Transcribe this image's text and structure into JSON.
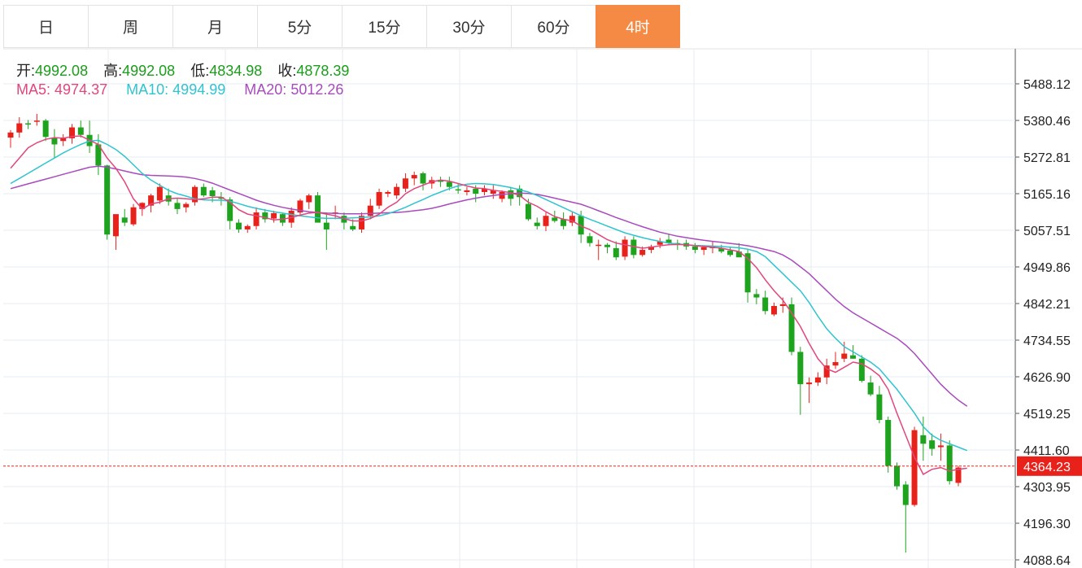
{
  "tabs": [
    {
      "label": "日",
      "active": false
    },
    {
      "label": "周",
      "active": false
    },
    {
      "label": "月",
      "active": false
    },
    {
      "label": "5分",
      "active": false
    },
    {
      "label": "15分",
      "active": false
    },
    {
      "label": "30分",
      "active": false
    },
    {
      "label": "60分",
      "active": false
    },
    {
      "label": "4时",
      "active": true
    }
  ],
  "ohlc_info": {
    "open_label": "开:",
    "open": "4992.08",
    "high_label": "高:",
    "high": "4992.08",
    "low_label": "低:",
    "low": "4834.98",
    "close_label": "收:",
    "close": "4878.39"
  },
  "ma_info": {
    "ma5_label": "MA5:",
    "ma5": "4974.37",
    "ma10_label": "MA10:",
    "ma10": "4994.99",
    "ma20_label": "MA20:",
    "ma20": "5012.26"
  },
  "colors": {
    "up": "#e8221b",
    "down": "#1ea31e",
    "ma5": "#e2467c",
    "ma10": "#2fc4d0",
    "ma20": "#a84bbd",
    "grid": "#e6ecf0",
    "tab_active": "#f58a45"
  },
  "chart_data": {
    "type": "candlestick",
    "y_ticks": [
      "5488.12",
      "5380.46",
      "5272.81",
      "5165.16",
      "5057.51",
      "4949.86",
      "4842.21",
      "4734.55",
      "4626.90",
      "4519.25",
      "4411.60",
      "4303.95",
      "4196.30",
      "4088.64"
    ],
    "ylim": [
      4088.64,
      5488.12
    ],
    "last_price": "4364.23",
    "grid": true,
    "candles": [
      [
        5330,
        5352,
        5300,
        5345
      ],
      [
        5345,
        5390,
        5330,
        5372
      ],
      [
        5372,
        5382,
        5355,
        5370
      ],
      [
        5378,
        5400,
        5365,
        5380
      ],
      [
        5380,
        5385,
        5320,
        5332
      ],
      [
        5330,
        5355,
        5270,
        5310
      ],
      [
        5320,
        5340,
        5305,
        5330
      ],
      [
        5328,
        5370,
        5312,
        5360
      ],
      [
        5360,
        5380,
        5330,
        5338
      ],
      [
        5338,
        5380,
        5285,
        5305
      ],
      [
        5310,
        5340,
        5220,
        5248
      ],
      [
        5248,
        5250,
        5030,
        5045
      ],
      [
        5040,
        5100,
        5000,
        5105
      ],
      [
        5095,
        5120,
        5070,
        5080
      ],
      [
        5075,
        5135,
        5070,
        5125
      ],
      [
        5120,
        5140,
        5100,
        5138
      ],
      [
        5130,
        5165,
        5110,
        5160
      ],
      [
        5145,
        5195,
        5135,
        5185
      ],
      [
        5160,
        5180,
        5130,
        5142
      ],
      [
        5138,
        5150,
        5105,
        5120
      ],
      [
        5125,
        5140,
        5110,
        5135
      ],
      [
        5140,
        5190,
        5130,
        5185
      ],
      [
        5185,
        5195,
        5155,
        5160
      ],
      [
        5175,
        5185,
        5140,
        5158
      ],
      [
        5155,
        5170,
        5130,
        5150
      ],
      [
        5148,
        5155,
        5060,
        5085
      ],
      [
        5080,
        5090,
        5050,
        5060
      ],
      [
        5060,
        5075,
        5050,
        5070
      ],
      [
        5070,
        5125,
        5060,
        5110
      ],
      [
        5110,
        5120,
        5080,
        5090
      ],
      [
        5092,
        5115,
        5080,
        5108
      ],
      [
        5105,
        5108,
        5070,
        5080
      ],
      [
        5080,
        5125,
        5065,
        5115
      ],
      [
        5110,
        5150,
        5100,
        5145
      ],
      [
        5140,
        5165,
        5120,
        5160
      ],
      [
        5160,
        5170,
        5090,
        5080
      ],
      [
        5080,
        5110,
        5000,
        5060
      ],
      [
        5110,
        5130,
        5090,
        5110
      ],
      [
        5100,
        5110,
        5060,
        5080
      ],
      [
        5070,
        5090,
        5055,
        5060
      ],
      [
        5060,
        5110,
        5050,
        5100
      ],
      [
        5100,
        5150,
        5090,
        5130
      ],
      [
        5130,
        5180,
        5120,
        5170
      ],
      [
        5165,
        5175,
        5155,
        5170
      ],
      [
        5160,
        5195,
        5150,
        5185
      ],
      [
        5180,
        5225,
        5170,
        5210
      ],
      [
        5210,
        5230,
        5190,
        5220
      ],
      [
        5225,
        5230,
        5175,
        5195
      ],
      [
        5195,
        5215,
        5180,
        5205
      ],
      [
        5205,
        5215,
        5185,
        5200
      ],
      [
        5200,
        5215,
        5175,
        5185
      ],
      [
        5178,
        5195,
        5165,
        5175
      ],
      [
        5170,
        5185,
        5160,
        5175
      ],
      [
        5180,
        5190,
        5140,
        5165
      ],
      [
        5170,
        5190,
        5160,
        5180
      ],
      [
        5165,
        5190,
        5150,
        5175
      ],
      [
        5150,
        5175,
        5140,
        5170
      ],
      [
        5175,
        5185,
        5130,
        5150
      ],
      [
        5180,
        5190,
        5130,
        5155
      ],
      [
        5135,
        5150,
        5085,
        5090
      ],
      [
        5080,
        5095,
        5060,
        5070
      ],
      [
        5070,
        5110,
        5055,
        5100
      ],
      [
        5095,
        5115,
        5080,
        5085
      ],
      [
        5090,
        5110,
        5060,
        5070
      ],
      [
        5080,
        5110,
        5070,
        5100
      ],
      [
        5100,
        5115,
        5020,
        5045
      ],
      [
        5040,
        5050,
        5010,
        5020
      ],
      [
        5015,
        5030,
        4970,
        5015
      ],
      [
        5015,
        5020,
        4990,
        5008
      ],
      [
        5005,
        5025,
        4970,
        4978
      ],
      [
        4980,
        5040,
        4970,
        5030
      ],
      [
        5030,
        5040,
        4975,
        4985
      ],
      [
        4985,
        5010,
        4980,
        5000
      ],
      [
        5000,
        5015,
        4990,
        5010
      ],
      [
        5015,
        5035,
        5005,
        5025
      ],
      [
        5030,
        5045,
        5015,
        5020
      ],
      [
        5020,
        5030,
        5000,
        5015
      ],
      [
        5020,
        5030,
        5000,
        5010
      ],
      [
        5010,
        5020,
        4990,
        5000
      ],
      [
        5000,
        5012,
        4985,
        5008
      ],
      [
        5005,
        5025,
        4990,
        5010
      ],
      [
        5005,
        5015,
        4990,
        4995
      ],
      [
        4998,
        5010,
        4980,
        4985
      ],
      [
        4995,
        5020,
        4980,
        4978
      ],
      [
        4990,
        5000,
        4845,
        4875
      ],
      [
        4870,
        4885,
        4840,
        4860
      ],
      [
        4860,
        4880,
        4810,
        4820
      ],
      [
        4810,
        4845,
        4805,
        4835
      ],
      [
        4835,
        4860,
        4815,
        4840
      ],
      [
        4840,
        4860,
        4690,
        4700
      ],
      [
        4700,
        4715,
        4515,
        4605
      ],
      [
        4605,
        4625,
        4550,
        4610
      ],
      [
        4610,
        4640,
        4600,
        4625
      ],
      [
        4625,
        4680,
        4605,
        4660
      ],
      [
        4660,
        4700,
        4650,
        4670
      ],
      [
        4680,
        4730,
        4670,
        4695
      ],
      [
        4690,
        4720,
        4680,
        4680
      ],
      [
        4680,
        4690,
        4610,
        4615
      ],
      [
        4610,
        4630,
        4570,
        4575
      ],
      [
        4575,
        4600,
        4490,
        4500
      ],
      [
        4500,
        4510,
        4345,
        4365
      ],
      [
        4365,
        4375,
        4295,
        4305
      ],
      [
        4310,
        4320,
        4110,
        4250
      ],
      [
        4250,
        4480,
        4245,
        4470
      ],
      [
        4455,
        4510,
        4380,
        4430
      ],
      [
        4440,
        4460,
        4395,
        4415
      ],
      [
        4420,
        4460,
        4380,
        4425
      ],
      [
        4425,
        4440,
        4310,
        4320
      ],
      [
        4315,
        4365,
        4305,
        4360
      ]
    ],
    "ma5": [
      5240,
      5270,
      5300,
      5315,
      5325,
      5330,
      5328,
      5333,
      5335,
      5322,
      5310,
      5270,
      5240,
      5200,
      5150,
      5120,
      5135,
      5140,
      5150,
      5152,
      5150,
      5148,
      5150,
      5155,
      5155,
      5140,
      5118,
      5105,
      5100,
      5095,
      5088,
      5090,
      5095,
      5102,
      5108,
      5110,
      5105,
      5100,
      5092,
      5085,
      5085,
      5092,
      5105,
      5125,
      5140,
      5165,
      5180,
      5190,
      5200,
      5205,
      5202,
      5195,
      5188,
      5182,
      5180,
      5175,
      5172,
      5168,
      5160,
      5140,
      5128,
      5112,
      5098,
      5090,
      5085,
      5070,
      5060,
      5045,
      5030,
      5020,
      5015,
      5010,
      5005,
      5008,
      5012,
      5015,
      5016,
      5015,
      5012,
      5010,
      5008,
      5005,
      5000,
      4995,
      4975,
      4948,
      4912,
      4880,
      4852,
      4815,
      4775,
      4725,
      4680,
      4650,
      4640,
      4655,
      4670,
      4665,
      4650,
      4630,
      4590,
      4520,
      4455,
      4390,
      4340,
      4355,
      4360,
      4350,
      4355,
      4358
    ],
    "ma10": [
      5195,
      5210,
      5225,
      5240,
      5255,
      5270,
      5285,
      5298,
      5310,
      5320,
      5322,
      5310,
      5295,
      5275,
      5250,
      5225,
      5205,
      5190,
      5175,
      5165,
      5158,
      5150,
      5147,
      5146,
      5146,
      5143,
      5136,
      5128,
      5122,
      5117,
      5112,
      5108,
      5104,
      5100,
      5097,
      5094,
      5093,
      5093,
      5093,
      5094,
      5095,
      5097,
      5100,
      5106,
      5115,
      5125,
      5137,
      5148,
      5160,
      5170,
      5180,
      5188,
      5193,
      5195,
      5194,
      5192,
      5188,
      5183,
      5177,
      5170,
      5160,
      5148,
      5136,
      5124,
      5112,
      5100,
      5090,
      5080,
      5070,
      5060,
      5050,
      5043,
      5036,
      5030,
      5025,
      5020,
      5017,
      5015,
      5013,
      5012,
      5011,
      5010,
      5008,
      5006,
      5002,
      4995,
      4980,
      4955,
      4930,
      4905,
      4880,
      4845,
      4805,
      4768,
      4740,
      4715,
      4700,
      4685,
      4670,
      4650,
      4620,
      4590,
      4555,
      4520,
      4480,
      4455,
      4440,
      4430,
      4420,
      4410
    ],
    "ma20": [
      5180,
      5187,
      5194,
      5201,
      5208,
      5215,
      5222,
      5229,
      5236,
      5243,
      5246,
      5243,
      5238,
      5232,
      5226,
      5221,
      5219,
      5218,
      5217,
      5216,
      5214,
      5210,
      5204,
      5196,
      5186,
      5176,
      5166,
      5156,
      5146,
      5138,
      5131,
      5125,
      5120,
      5116,
      5112,
      5110,
      5108,
      5107,
      5106,
      5106,
      5106,
      5107,
      5108,
      5109,
      5110,
      5112,
      5115,
      5118,
      5122,
      5128,
      5135,
      5141,
      5147,
      5152,
      5156,
      5160,
      5163,
      5165,
      5167,
      5166,
      5163,
      5158,
      5152,
      5146,
      5140,
      5134,
      5125,
      5115,
      5105,
      5095,
      5086,
      5077,
      5068,
      5060,
      5052,
      5046,
      5040,
      5036,
      5032,
      5028,
      5025,
      5022,
      5019,
      5016,
      5012,
      5007,
      5001,
      4995,
      4985,
      4970,
      4950,
      4930,
      4905,
      4880,
      4855,
      4833,
      4815,
      4800,
      4785,
      4770,
      4755,
      4740,
      4720,
      4695,
      4665,
      4635,
      4605,
      4580,
      4558,
      4540
    ]
  }
}
